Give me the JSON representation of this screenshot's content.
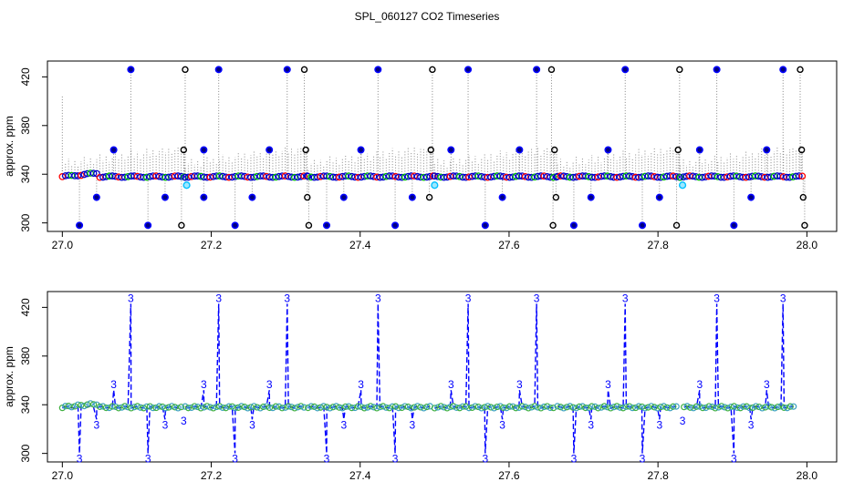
{
  "title": "SPL_060127  CO2 Timeseries",
  "chart_data": [
    {
      "type": "scatter",
      "panel": "top",
      "title": "SPL_060127  CO2 Timeseries",
      "xlabel": "",
      "ylabel": "approx. ppm",
      "xlim": [
        26.98,
        28.04
      ],
      "ylim": [
        293,
        433
      ],
      "xticks": [
        27.0,
        27.2,
        27.4,
        27.6,
        27.8,
        28.0
      ],
      "xtick_labels": [
        "27.0",
        "27.2",
        "27.4",
        "27.6",
        "27.8",
        "28.0"
      ],
      "yticks": [
        300,
        340,
        380,
        420
      ],
      "ytick_labels": [
        "300",
        "340",
        "380",
        "420"
      ],
      "segments": [
        [
          27.0,
          27.165
        ],
        [
          27.165,
          27.33
        ],
        [
          27.33,
          27.5
        ],
        [
          27.5,
          27.665
        ],
        [
          27.665,
          27.83
        ],
        [
          27.83,
          27.995
        ]
      ],
      "baseline_ppm": 338,
      "spikes": [
        {
          "x": 27.0,
          "y": 405,
          "color": "#888888"
        },
        {
          "x": 27.023,
          "y": 298,
          "color": "#0000ff"
        },
        {
          "x": 27.046,
          "y": 321,
          "color": "#0000ff"
        },
        {
          "x": 27.069,
          "y": 360,
          "color": "#0000ff"
        },
        {
          "x": 27.092,
          "y": 426,
          "color": "#0000ff"
        },
        {
          "x": 27.115,
          "y": 298,
          "color": "#0000ff"
        },
        {
          "x": 27.138,
          "y": 321,
          "color": "#0000ff"
        },
        {
          "x": 27.16,
          "y": 298,
          "color": "#000000"
        },
        {
          "x": 27.163,
          "y": 360,
          "color": "#000000"
        },
        {
          "x": 27.165,
          "y": 426,
          "color": "#000000"
        },
        {
          "x": 27.167,
          "y": 331,
          "color": "#00bfff"
        },
        {
          "x": 27.19,
          "y": 321,
          "color": "#0000ff"
        },
        {
          "x": 27.19,
          "y": 360,
          "color": "#0000ff"
        },
        {
          "x": 27.21,
          "y": 426,
          "color": "#0000ff"
        },
        {
          "x": 27.232,
          "y": 298,
          "color": "#0000ff"
        },
        {
          "x": 27.255,
          "y": 321,
          "color": "#0000ff"
        },
        {
          "x": 27.278,
          "y": 360,
          "color": "#0000ff"
        },
        {
          "x": 27.302,
          "y": 426,
          "color": "#0000ff"
        },
        {
          "x": 27.325,
          "y": 426,
          "color": "#000000"
        },
        {
          "x": 27.327,
          "y": 360,
          "color": "#000000"
        },
        {
          "x": 27.329,
          "y": 321,
          "color": "#000000"
        },
        {
          "x": 27.331,
          "y": 298,
          "color": "#000000"
        },
        {
          "x": 27.355,
          "y": 298,
          "color": "#0000ff"
        },
        {
          "x": 27.378,
          "y": 321,
          "color": "#0000ff"
        },
        {
          "x": 27.401,
          "y": 360,
          "color": "#0000ff"
        },
        {
          "x": 27.424,
          "y": 426,
          "color": "#0000ff"
        },
        {
          "x": 27.447,
          "y": 298,
          "color": "#0000ff"
        },
        {
          "x": 27.47,
          "y": 321,
          "color": "#0000ff"
        },
        {
          "x": 27.493,
          "y": 321,
          "color": "#000000"
        },
        {
          "x": 27.495,
          "y": 360,
          "color": "#000000"
        },
        {
          "x": 27.497,
          "y": 426,
          "color": "#000000"
        },
        {
          "x": 27.5,
          "y": 331,
          "color": "#00bfff"
        },
        {
          "x": 27.522,
          "y": 360,
          "color": "#0000ff"
        },
        {
          "x": 27.545,
          "y": 426,
          "color": "#0000ff"
        },
        {
          "x": 27.568,
          "y": 298,
          "color": "#0000ff"
        },
        {
          "x": 27.591,
          "y": 321,
          "color": "#0000ff"
        },
        {
          "x": 27.614,
          "y": 360,
          "color": "#0000ff"
        },
        {
          "x": 27.637,
          "y": 426,
          "color": "#0000ff"
        },
        {
          "x": 27.657,
          "y": 426,
          "color": "#000000"
        },
        {
          "x": 27.659,
          "y": 298,
          "color": "#000000"
        },
        {
          "x": 27.661,
          "y": 360,
          "color": "#000000"
        },
        {
          "x": 27.663,
          "y": 321,
          "color": "#000000"
        },
        {
          "x": 27.687,
          "y": 298,
          "color": "#0000ff"
        },
        {
          "x": 27.71,
          "y": 321,
          "color": "#0000ff"
        },
        {
          "x": 27.733,
          "y": 360,
          "color": "#0000ff"
        },
        {
          "x": 27.756,
          "y": 426,
          "color": "#0000ff"
        },
        {
          "x": 27.779,
          "y": 298,
          "color": "#0000ff"
        },
        {
          "x": 27.802,
          "y": 321,
          "color": "#0000ff"
        },
        {
          "x": 27.825,
          "y": 298,
          "color": "#000000"
        },
        {
          "x": 27.827,
          "y": 360,
          "color": "#000000"
        },
        {
          "x": 27.829,
          "y": 426,
          "color": "#000000"
        },
        {
          "x": 27.833,
          "y": 331,
          "color": "#00bfff"
        },
        {
          "x": 27.856,
          "y": 360,
          "color": "#0000ff"
        },
        {
          "x": 27.879,
          "y": 426,
          "color": "#0000ff"
        },
        {
          "x": 27.902,
          "y": 298,
          "color": "#0000ff"
        },
        {
          "x": 27.925,
          "y": 321,
          "color": "#0000ff"
        },
        {
          "x": 27.946,
          "y": 360,
          "color": "#0000ff"
        },
        {
          "x": 27.968,
          "y": 426,
          "color": "#0000ff"
        },
        {
          "x": 27.991,
          "y": 426,
          "color": "#000000"
        },
        {
          "x": 27.993,
          "y": 360,
          "color": "#000000"
        },
        {
          "x": 27.995,
          "y": 321,
          "color": "#000000"
        },
        {
          "x": 27.997,
          "y": 298,
          "color": "#000000"
        }
      ]
    },
    {
      "type": "line",
      "panel": "bottom",
      "xlabel": "",
      "ylabel": "approx. ppm",
      "xlim": [
        26.98,
        28.04
      ],
      "ylim": [
        293,
        433
      ],
      "xticks": [
        27.0,
        27.2,
        27.4,
        27.6,
        27.8,
        28.0
      ],
      "xtick_labels": [
        "27.0",
        "27.2",
        "27.4",
        "27.6",
        "27.8",
        "28.0"
      ],
      "yticks": [
        300,
        340,
        380,
        420
      ],
      "ytick_labels": [
        "300",
        "340",
        "380",
        "420"
      ],
      "marker_label": "3",
      "segments": [
        [
          27.0,
          27.16
        ],
        [
          27.165,
          27.325
        ],
        [
          27.33,
          27.495
        ],
        [
          27.5,
          27.66
        ],
        [
          27.665,
          27.825
        ],
        [
          27.835,
          27.985
        ]
      ],
      "baseline_ppm": 338,
      "spikes": [
        {
          "x": 27.023,
          "y": 300
        },
        {
          "x": 27.046,
          "y": 328
        },
        {
          "x": 27.069,
          "y": 352
        },
        {
          "x": 27.092,
          "y": 423
        },
        {
          "x": 27.115,
          "y": 300
        },
        {
          "x": 27.138,
          "y": 328
        },
        {
          "x": 27.163,
          "y": 331
        },
        {
          "x": 27.19,
          "y": 352
        },
        {
          "x": 27.21,
          "y": 423
        },
        {
          "x": 27.232,
          "y": 300
        },
        {
          "x": 27.255,
          "y": 328
        },
        {
          "x": 27.278,
          "y": 352
        },
        {
          "x": 27.302,
          "y": 423
        },
        {
          "x": 27.355,
          "y": 300
        },
        {
          "x": 27.378,
          "y": 328
        },
        {
          "x": 27.401,
          "y": 352
        },
        {
          "x": 27.424,
          "y": 423
        },
        {
          "x": 27.447,
          "y": 300
        },
        {
          "x": 27.47,
          "y": 328
        },
        {
          "x": 27.522,
          "y": 352
        },
        {
          "x": 27.545,
          "y": 423
        },
        {
          "x": 27.568,
          "y": 300
        },
        {
          "x": 27.591,
          "y": 328
        },
        {
          "x": 27.614,
          "y": 352
        },
        {
          "x": 27.637,
          "y": 423
        },
        {
          "x": 27.687,
          "y": 300
        },
        {
          "x": 27.71,
          "y": 328
        },
        {
          "x": 27.733,
          "y": 352
        },
        {
          "x": 27.756,
          "y": 423
        },
        {
          "x": 27.779,
          "y": 300
        },
        {
          "x": 27.802,
          "y": 328
        },
        {
          "x": 27.833,
          "y": 331
        },
        {
          "x": 27.856,
          "y": 352
        },
        {
          "x": 27.879,
          "y": 423
        },
        {
          "x": 27.902,
          "y": 300
        },
        {
          "x": 27.925,
          "y": 328
        },
        {
          "x": 27.946,
          "y": 352
        },
        {
          "x": 27.968,
          "y": 423
        }
      ]
    }
  ],
  "colors": {
    "spike_blue": "#0000ff",
    "spike_black": "#000000",
    "spike_cyan": "#00bfff",
    "baseline_green": "#00c000",
    "baseline_red": "#ff0000",
    "dotted_grey": "#888888",
    "line_blue": "#0000ff"
  }
}
